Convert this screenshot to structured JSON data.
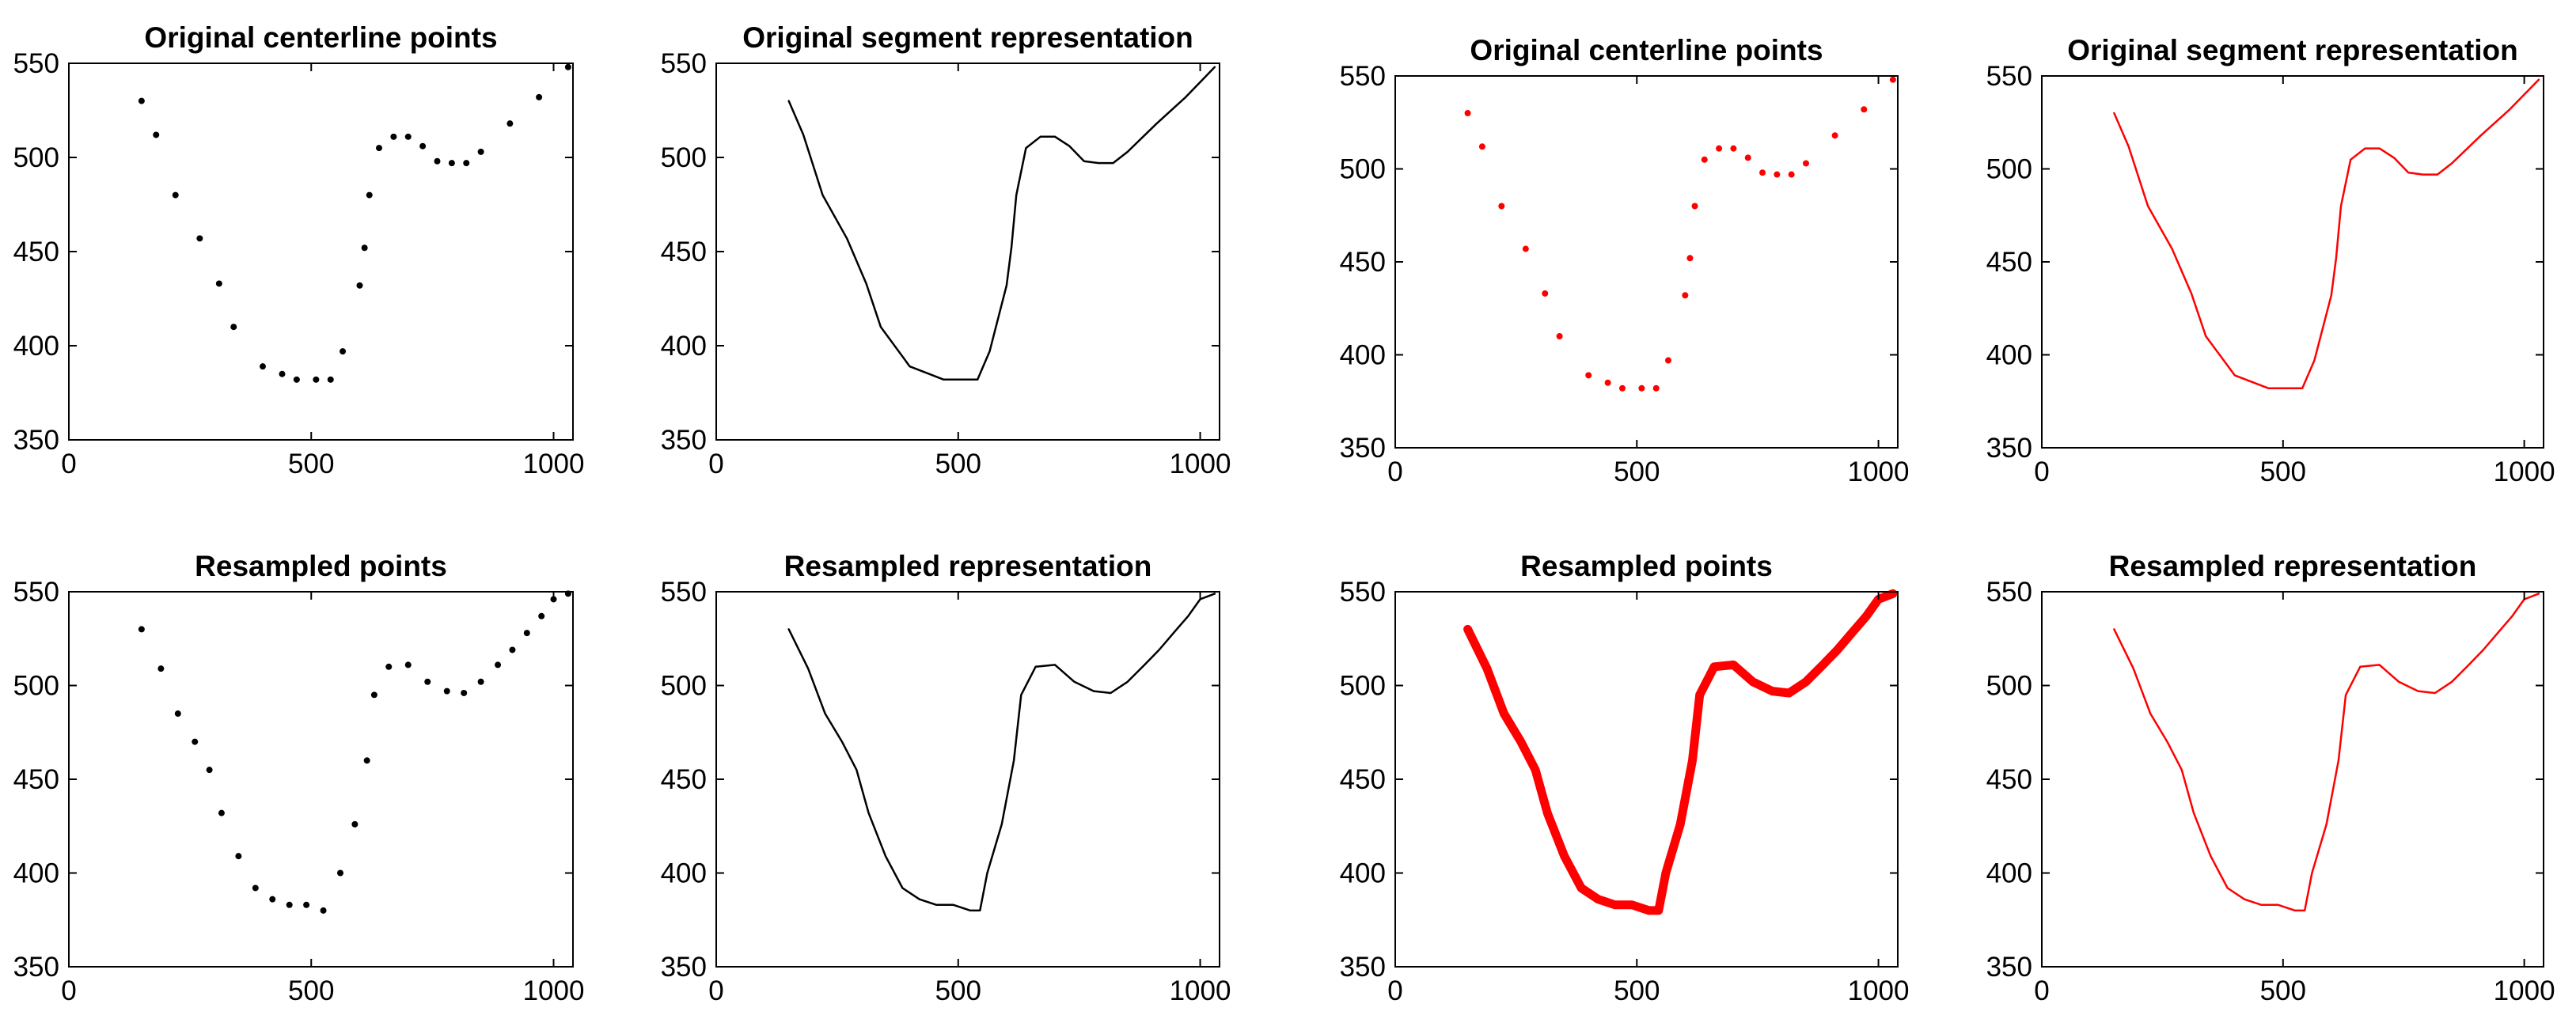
{
  "figure": {
    "background": "#ffffff"
  },
  "chart_data": [
    {
      "id": "p1",
      "type": "scatter",
      "style": "dots",
      "color": "#000000",
      "title": "Original centerline points",
      "xlim": [
        0,
        1040
      ],
      "ylim": [
        350,
        550
      ],
      "xticks": [
        0,
        500,
        1000
      ],
      "yticks": [
        350,
        400,
        450,
        500,
        550
      ],
      "x": [
        150,
        180,
        220,
        270,
        310,
        340,
        400,
        440,
        470,
        510,
        540,
        565,
        600,
        610,
        620,
        640,
        670,
        700,
        730,
        760,
        790,
        820,
        850,
        910,
        970,
        1030
      ],
      "y": [
        530,
        512,
        480,
        457,
        433,
        410,
        389,
        385,
        382,
        382,
        382,
        397,
        432,
        452,
        480,
        505,
        511,
        511,
        506,
        498,
        497,
        497,
        503,
        518,
        532,
        548
      ]
    },
    {
      "id": "p2",
      "type": "line",
      "style": "line",
      "color": "#000000",
      "title": "Original segment representation",
      "xlim": [
        0,
        1040
      ],
      "ylim": [
        350,
        550
      ],
      "xticks": [
        0,
        500,
        1000
      ],
      "yticks": [
        350,
        400,
        450,
        500,
        550
      ],
      "x": [
        150,
        180,
        220,
        270,
        310,
        340,
        400,
        440,
        470,
        510,
        540,
        565,
        600,
        610,
        620,
        640,
        670,
        700,
        730,
        760,
        790,
        820,
        850,
        910,
        970,
        1030
      ],
      "y": [
        530,
        512,
        480,
        457,
        433,
        410,
        389,
        385,
        382,
        382,
        382,
        397,
        432,
        452,
        480,
        505,
        511,
        511,
        506,
        498,
        497,
        497,
        503,
        518,
        532,
        548
      ]
    },
    {
      "id": "p3",
      "type": "scatter",
      "style": "dots",
      "color": "#ff0000",
      "title": "Original centerline points",
      "xlim": [
        0,
        1040
      ],
      "ylim": [
        350,
        550
      ],
      "xticks": [
        0,
        500,
        1000
      ],
      "yticks": [
        350,
        400,
        450,
        500,
        550
      ],
      "x": [
        150,
        180,
        220,
        270,
        310,
        340,
        400,
        440,
        470,
        510,
        540,
        565,
        600,
        610,
        620,
        640,
        670,
        700,
        730,
        760,
        790,
        820,
        850,
        910,
        970,
        1030
      ],
      "y": [
        530,
        512,
        480,
        457,
        433,
        410,
        389,
        385,
        382,
        382,
        382,
        397,
        432,
        452,
        480,
        505,
        511,
        511,
        506,
        498,
        497,
        497,
        503,
        518,
        532,
        548
      ]
    },
    {
      "id": "p4",
      "type": "line",
      "style": "line",
      "color": "#ff0000",
      "title": "Original segment representation",
      "xlim": [
        0,
        1040
      ],
      "ylim": [
        350,
        550
      ],
      "xticks": [
        0,
        500,
        1000
      ],
      "yticks": [
        350,
        400,
        450,
        500,
        550
      ],
      "x": [
        150,
        180,
        220,
        270,
        310,
        340,
        400,
        440,
        470,
        510,
        540,
        565,
        600,
        610,
        620,
        640,
        670,
        700,
        730,
        760,
        790,
        820,
        850,
        910,
        970,
        1030
      ],
      "y": [
        530,
        512,
        480,
        457,
        433,
        410,
        389,
        385,
        382,
        382,
        382,
        397,
        432,
        452,
        480,
        505,
        511,
        511,
        506,
        498,
        497,
        497,
        503,
        518,
        532,
        548
      ]
    },
    {
      "id": "p5",
      "type": "scatter",
      "style": "dots",
      "color": "#000000",
      "title": "Resampled points",
      "xlim": [
        0,
        1040
      ],
      "ylim": [
        350,
        550
      ],
      "xticks": [
        0,
        500,
        1000
      ],
      "yticks": [
        350,
        400,
        450,
        500,
        550
      ],
      "x": [
        150,
        190,
        225,
        260,
        290,
        315,
        350,
        385,
        420,
        455,
        490,
        525,
        560,
        590,
        615,
        630,
        660,
        700,
        740,
        780,
        815,
        850,
        885,
        915,
        945,
        975,
        1000,
        1030
      ],
      "y": [
        530,
        509,
        485,
        470,
        455,
        432,
        409,
        392,
        386,
        383,
        383,
        380,
        400,
        426,
        460,
        495,
        510,
        511,
        502,
        497,
        496,
        502,
        511,
        519,
        528,
        537,
        546,
        549
      ]
    },
    {
      "id": "p6",
      "type": "line",
      "style": "line",
      "color": "#000000",
      "title": "Resampled representation",
      "xlim": [
        0,
        1040
      ],
      "ylim": [
        350,
        550
      ],
      "xticks": [
        0,
        500,
        1000
      ],
      "yticks": [
        350,
        400,
        450,
        500,
        550
      ],
      "x": [
        150,
        190,
        225,
        260,
        290,
        315,
        350,
        385,
        420,
        455,
        490,
        525,
        545,
        560,
        590,
        615,
        630,
        660,
        700,
        740,
        780,
        815,
        850,
        885,
        915,
        945,
        975,
        1000,
        1030
      ],
      "y": [
        530,
        509,
        485,
        470,
        455,
        432,
        409,
        392,
        386,
        383,
        383,
        380,
        380,
        400,
        426,
        460,
        495,
        510,
        511,
        502,
        497,
        496,
        502,
        511,
        519,
        528,
        537,
        546,
        549
      ]
    },
    {
      "id": "p7",
      "type": "line",
      "style": "thick",
      "color": "#ff0000",
      "title": "Resampled points",
      "xlim": [
        0,
        1040
      ],
      "ylim": [
        350,
        550
      ],
      "xticks": [
        0,
        500,
        1000
      ],
      "yticks": [
        350,
        400,
        450,
        500,
        550
      ],
      "x": [
        150,
        190,
        225,
        260,
        290,
        315,
        350,
        385,
        420,
        455,
        490,
        525,
        545,
        560,
        590,
        615,
        630,
        660,
        700,
        740,
        780,
        815,
        850,
        885,
        915,
        945,
        975,
        1000,
        1030
      ],
      "y": [
        530,
        509,
        485,
        470,
        455,
        432,
        409,
        392,
        386,
        383,
        383,
        380,
        380,
        400,
        426,
        460,
        495,
        510,
        511,
        502,
        497,
        496,
        502,
        511,
        519,
        528,
        537,
        546,
        549
      ]
    },
    {
      "id": "p8",
      "type": "line",
      "style": "line",
      "color": "#ff0000",
      "title": "Resampled representation",
      "xlim": [
        0,
        1040
      ],
      "ylim": [
        350,
        550
      ],
      "xticks": [
        0,
        500,
        1000
      ],
      "yticks": [
        350,
        400,
        450,
        500,
        550
      ],
      "x": [
        150,
        190,
        225,
        260,
        290,
        315,
        350,
        385,
        420,
        455,
        490,
        525,
        545,
        560,
        590,
        615,
        630,
        660,
        700,
        740,
        780,
        815,
        850,
        885,
        915,
        945,
        975,
        1000,
        1030
      ],
      "y": [
        530,
        509,
        485,
        470,
        455,
        432,
        409,
        392,
        386,
        383,
        383,
        380,
        380,
        400,
        426,
        460,
        495,
        510,
        511,
        502,
        497,
        496,
        502,
        511,
        519,
        528,
        537,
        546,
        549
      ]
    }
  ]
}
